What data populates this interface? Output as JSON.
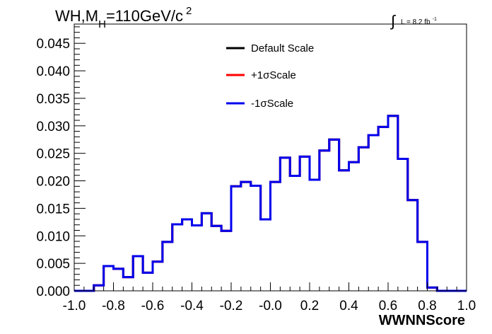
{
  "chart_data": {
    "type": "line",
    "title_main": "WH,M",
    "title_sub": "H",
    "title_rest": "=110GeV/c",
    "title_sup": "2",
    "lumi_symbol": "∫",
    "lumi_text": "L = 8.2 fb",
    "lumi_sup": "-1",
    "xlabel": "WWNNScore",
    "ylabel": "",
    "xlim": [
      -1.0,
      1.0
    ],
    "ylim": [
      0.0,
      0.0485
    ],
    "xticks": [
      -1.0,
      -0.8,
      -0.6,
      -0.4,
      -0.2,
      0.0,
      0.2,
      0.4,
      0.6,
      0.8,
      1.0
    ],
    "xtick_labels": [
      "-1.0",
      "-0.8",
      "-0.6",
      "-0.4",
      "-0.2",
      "-0.0",
      "0.2",
      "0.4",
      "0.6",
      "0.8",
      "1.0"
    ],
    "yticks": [
      0.0,
      0.005,
      0.01,
      0.015,
      0.02,
      0.025,
      0.03,
      0.035,
      0.04,
      0.045
    ],
    "ytick_labels": [
      "0.000",
      "0.005",
      "0.010",
      "0.015",
      "0.020",
      "0.025",
      "0.030",
      "0.035",
      "0.040",
      "0.045"
    ],
    "bin_edges": [
      -1.0,
      -0.95,
      -0.9,
      -0.85,
      -0.8,
      -0.75,
      -0.7,
      -0.65,
      -0.6,
      -0.55,
      -0.5,
      -0.45,
      -0.4,
      -0.35,
      -0.3,
      -0.25,
      -0.2,
      -0.15,
      -0.1,
      -0.05,
      0.0,
      0.05,
      0.1,
      0.15,
      0.2,
      0.25,
      0.3,
      0.35,
      0.4,
      0.45,
      0.5,
      0.55,
      0.6,
      0.65,
      0.7,
      0.75,
      0.8,
      0.85,
      0.9,
      0.95,
      1.0
    ],
    "series": [
      {
        "name": "Default Scale",
        "color": "#000000",
        "values": [
          0.0,
          0.0,
          0.001,
          0.0045,
          0.004,
          0.0025,
          0.0063,
          0.0033,
          0.0053,
          0.0089,
          0.0121,
          0.013,
          0.0119,
          0.0141,
          0.0118,
          0.0109,
          0.019,
          0.0198,
          0.0191,
          0.013,
          0.0198,
          0.0242,
          0.0209,
          0.0244,
          0.0202,
          0.0255,
          0.0275,
          0.0219,
          0.0234,
          0.0261,
          0.0283,
          0.0298,
          0.0318,
          0.024,
          0.0165,
          0.0089,
          0.0006,
          0.0,
          0.0,
          0.0
        ]
      },
      {
        "name": "+1σScale",
        "color": "#ff0000",
        "values": [
          0.0,
          0.0,
          0.001,
          0.0045,
          0.004,
          0.0025,
          0.0063,
          0.0033,
          0.0053,
          0.0089,
          0.0121,
          0.013,
          0.0119,
          0.0141,
          0.0118,
          0.0109,
          0.019,
          0.0198,
          0.0191,
          0.013,
          0.0198,
          0.0242,
          0.0209,
          0.0244,
          0.0202,
          0.0255,
          0.0275,
          0.0219,
          0.0234,
          0.0261,
          0.0283,
          0.0298,
          0.0318,
          0.024,
          0.0165,
          0.0089,
          0.0006,
          0.0,
          0.0,
          0.0
        ]
      },
      {
        "name": "-1σScale",
        "color": "#0000ee",
        "values": [
          0.0,
          0.0,
          0.001,
          0.0045,
          0.004,
          0.0025,
          0.0063,
          0.0033,
          0.0053,
          0.0089,
          0.0121,
          0.013,
          0.0119,
          0.0141,
          0.0118,
          0.0109,
          0.019,
          0.0198,
          0.0191,
          0.013,
          0.0198,
          0.0242,
          0.0209,
          0.0244,
          0.0202,
          0.0255,
          0.0275,
          0.0219,
          0.0234,
          0.0261,
          0.0283,
          0.0298,
          0.0318,
          0.024,
          0.0165,
          0.0089,
          0.0006,
          0.0,
          0.0,
          0.0
        ]
      }
    ],
    "legend_position": "top-center",
    "grid": false
  }
}
